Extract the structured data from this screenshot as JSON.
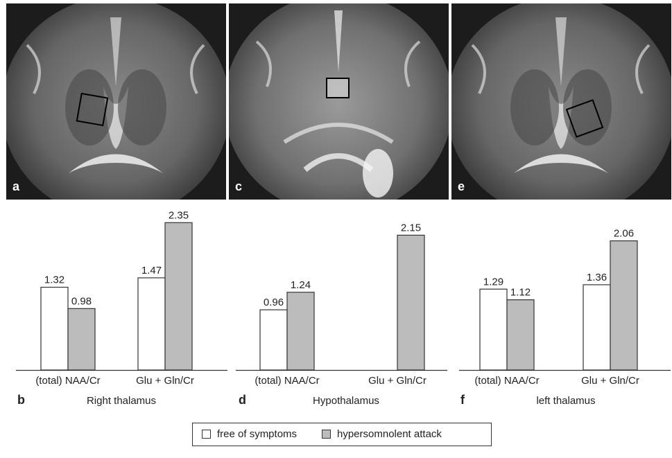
{
  "images": [
    {
      "label": "a"
    },
    {
      "label": "c"
    },
    {
      "label": "e"
    }
  ],
  "legend": [
    {
      "label": "free of symptoms",
      "color": "#ffffff"
    },
    {
      "label": "hypersomnolent attack",
      "color": "#bcbcbc"
    }
  ],
  "chart_data": [
    {
      "type": "bar",
      "panel_label": "b",
      "title": "Right thalamus",
      "categories": [
        "(total) NAA/Cr",
        "Glu + Gln/Cr"
      ],
      "series": [
        {
          "name": "free of symptoms",
          "values": [
            1.32,
            1.47
          ],
          "labels": [
            "1.32",
            "1.47"
          ]
        },
        {
          "name": "hypersomnolent attack",
          "values": [
            0.98,
            2.35
          ],
          "labels": [
            "0.98",
            "2.35"
          ]
        }
      ],
      "ylim": [
        0,
        2.5
      ]
    },
    {
      "type": "bar",
      "panel_label": "d",
      "title": "Hypothalamus",
      "categories": [
        "(total) NAA/Cr",
        "Glu + Gln/Cr"
      ],
      "series": [
        {
          "name": "free of symptoms",
          "values": [
            0.96,
            null
          ],
          "labels": [
            "0.96",
            ""
          ]
        },
        {
          "name": "hypersomnolent attack",
          "values": [
            1.24,
            2.15
          ],
          "labels": [
            "1.24",
            "2.15"
          ]
        }
      ],
      "ylim": [
        0,
        2.5
      ]
    },
    {
      "type": "bar",
      "panel_label": "f",
      "title": "left thalamus",
      "categories": [
        "(total) NAA/Cr",
        "Glu + Gln/Cr"
      ],
      "series": [
        {
          "name": "free of symptoms",
          "values": [
            1.29,
            1.36
          ],
          "labels": [
            "1.29",
            "1.36"
          ]
        },
        {
          "name": "hypersomnolent attack",
          "values": [
            1.12,
            2.06
          ],
          "labels": [
            "1.12",
            "2.06"
          ]
        }
      ],
      "ylim": [
        0,
        2.5
      ]
    }
  ]
}
